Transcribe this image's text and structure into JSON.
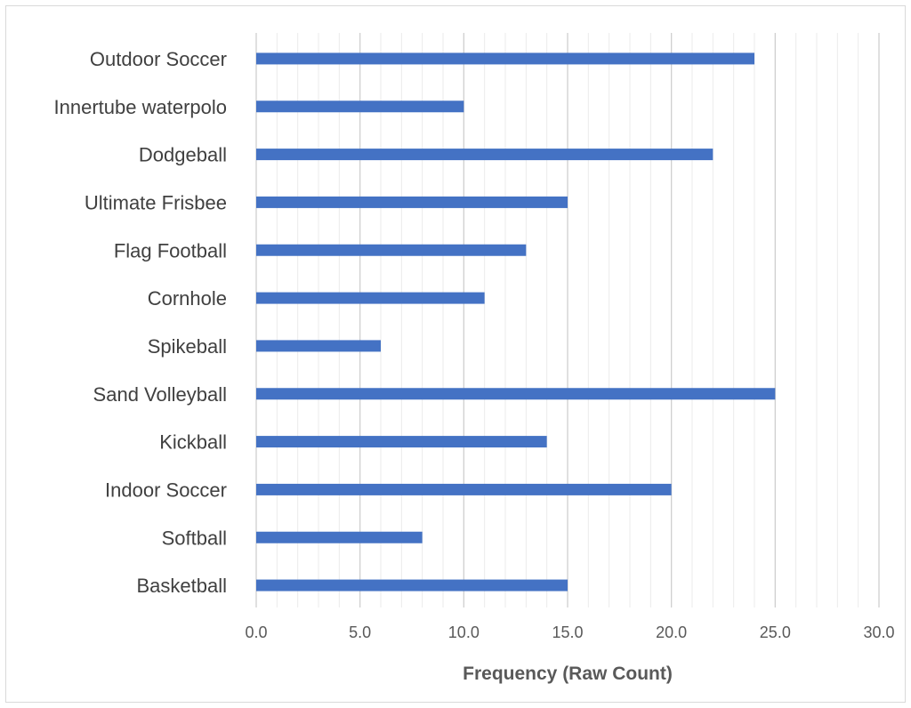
{
  "chart_data": {
    "type": "bar",
    "orientation": "horizontal",
    "title": "",
    "xlabel": "Frequency (Raw Count)",
    "ylabel": "",
    "categories": [
      "Outdoor Soccer",
      "Innertube waterpolo",
      "Dodgeball",
      "Ultimate Frisbee",
      "Flag Football",
      "Cornhole",
      "Spikeball",
      "Sand Volleyball",
      "Kickball",
      "Indoor Soccer",
      "Softball",
      "Basketball"
    ],
    "values": [
      24,
      10,
      22,
      15,
      13,
      11,
      6,
      25,
      14,
      20,
      8,
      15
    ],
    "xlim": [
      0,
      30
    ],
    "major_tick_step": 5,
    "minor_tick_step": 1,
    "tick_labels": [
      "0.0",
      "5.0",
      "10.0",
      "15.0",
      "20.0",
      "25.0",
      "30.0"
    ],
    "grid": true,
    "legend": "none",
    "bar_color": "#4472c4"
  }
}
